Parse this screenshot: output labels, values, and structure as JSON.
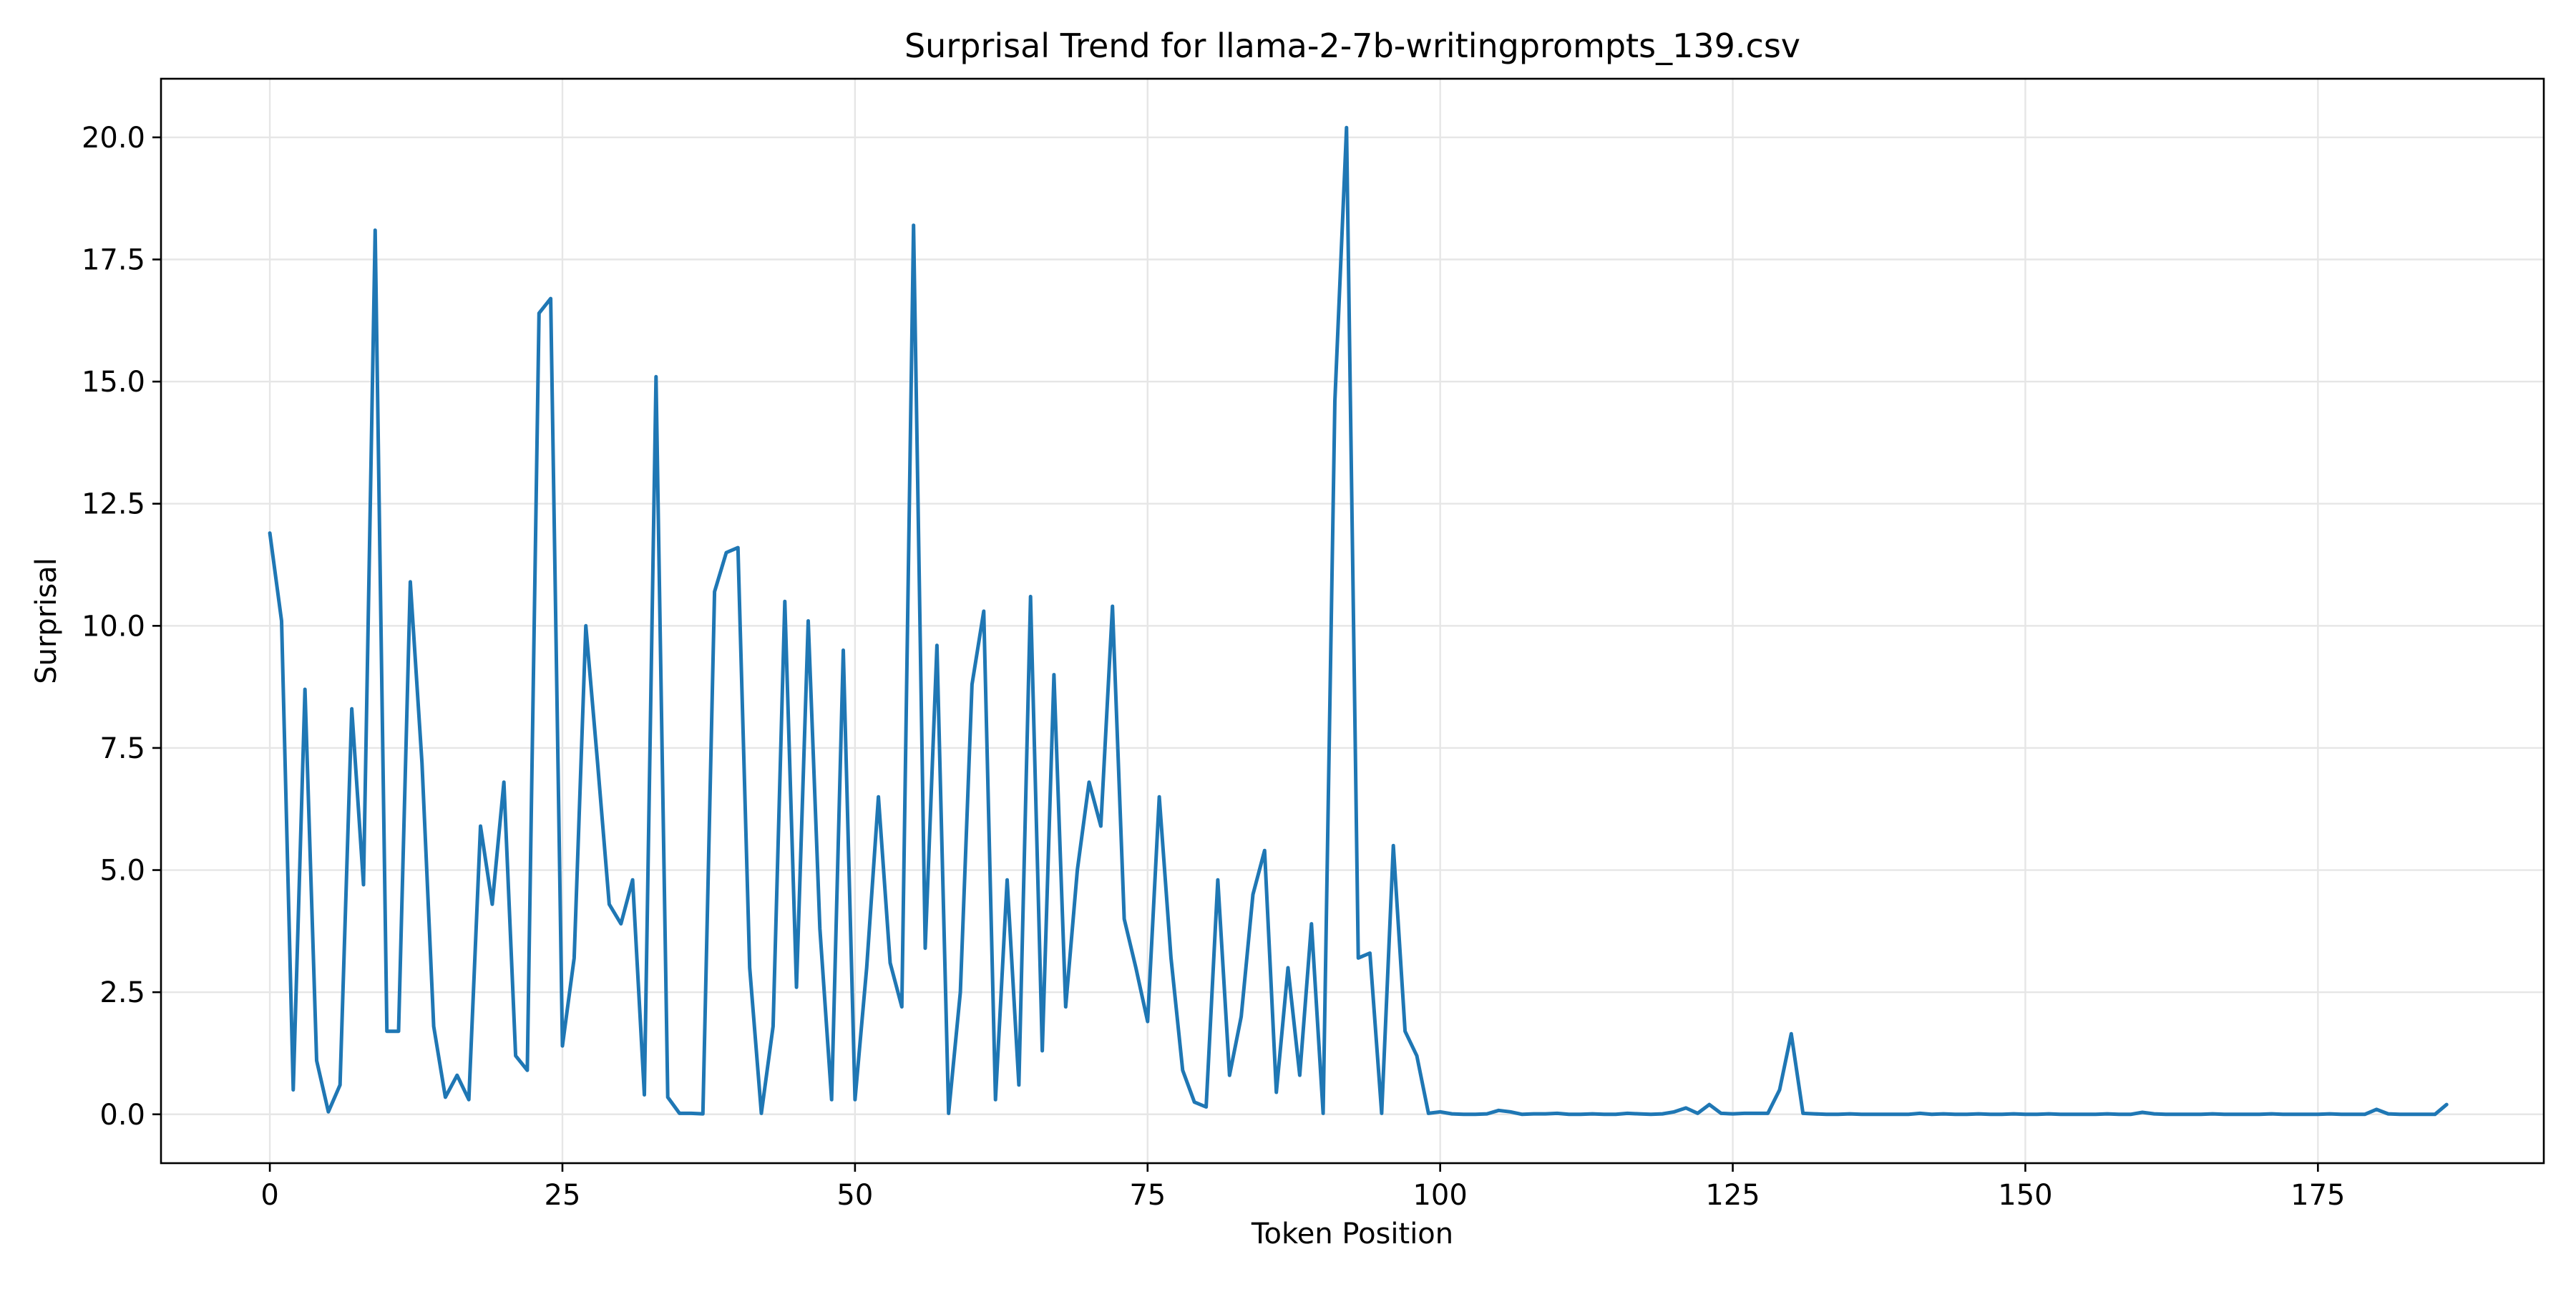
{
  "chart_data": {
    "type": "line",
    "title": "Surprisal Trend for llama-2-7b-writingprompts_139.csv",
    "xlabel": "Token Position",
    "ylabel": "Surprisal",
    "xlim": [
      -9.3,
      194.3
    ],
    "ylim": [
      -1.0,
      21.2
    ],
    "xticks": [
      0,
      25,
      50,
      75,
      100,
      125,
      150,
      175
    ],
    "xtick_labels": [
      "0",
      "25",
      "50",
      "75",
      "100",
      "125",
      "150",
      "175"
    ],
    "yticks": [
      0,
      2.5,
      5,
      7.5,
      10,
      12.5,
      15,
      17.5,
      20
    ],
    "ytick_labels": [
      "0.0",
      "2.5",
      "5.0",
      "7.5",
      "10.0",
      "12.5",
      "15.0",
      "17.5",
      "20.0"
    ],
    "grid": true,
    "legend": "none",
    "line_color": "#1f77b4",
    "series": [
      {
        "values": [
          11.9,
          10.1,
          0.5,
          8.7,
          1.1,
          0.05,
          0.6,
          8.3,
          4.7,
          18.1,
          1.7,
          1.7,
          10.9,
          7.2,
          1.8,
          0.35,
          0.8,
          0.3,
          5.9,
          4.3,
          6.8,
          1.2,
          0.9,
          16.4,
          16.7,
          1.4,
          3.2,
          10.0,
          7.2,
          4.3,
          3.9,
          4.8,
          0.4,
          15.1,
          0.35,
          0.02,
          0.02,
          0.01,
          10.7,
          11.5,
          11.6,
          3.0,
          0.02,
          1.8,
          10.5,
          2.6,
          10.1,
          3.8,
          0.3,
          9.5,
          0.3,
          3.0,
          6.5,
          3.1,
          2.2,
          18.2,
          3.4,
          9.6,
          0.02,
          2.5,
          8.8,
          10.3,
          0.3,
          4.8,
          0.6,
          10.6,
          1.3,
          9.0,
          2.2,
          5.0,
          6.8,
          5.9,
          10.4,
          4.0,
          3.0,
          1.9,
          6.5,
          3.2,
          0.9,
          0.25,
          0.15,
          4.8,
          0.8,
          2.0,
          4.5,
          5.4,
          0.45,
          3.0,
          0.8,
          3.9,
          0.02,
          14.6,
          20.2,
          3.2,
          3.3,
          0.02,
          5.5,
          1.7,
          1.2,
          0.02,
          0.05,
          0.01,
          0.0,
          0.0,
          0.01,
          0.08,
          0.05,
          0.0,
          0.01,
          0.01,
          0.02,
          0.0,
          0.0,
          0.01,
          0.0,
          0.0,
          0.02,
          0.01,
          0.0,
          0.01,
          0.05,
          0.13,
          0.02,
          0.2,
          0.02,
          0.01,
          0.02,
          0.02,
          0.02,
          0.5,
          1.65,
          0.02,
          0.01,
          0.0,
          0.0,
          0.01,
          0.0,
          0.0,
          0.0,
          0.0,
          0.0,
          0.02,
          0.0,
          0.01,
          0.0,
          0.0,
          0.01,
          0.0,
          0.0,
          0.01,
          0.0,
          0.0,
          0.01,
          0.0,
          0.0,
          0.0,
          0.0,
          0.01,
          0.0,
          0.0,
          0.04,
          0.01,
          0.0,
          0.0,
          0.0,
          0.0,
          0.01,
          0.0,
          0.0,
          0.0,
          0.0,
          0.01,
          0.0,
          0.0,
          0.0,
          0.0,
          0.01,
          0.0,
          0.0,
          0.0,
          0.1,
          0.01,
          0.0,
          0.0,
          0.0,
          0.0,
          0.2
        ]
      }
    ]
  }
}
